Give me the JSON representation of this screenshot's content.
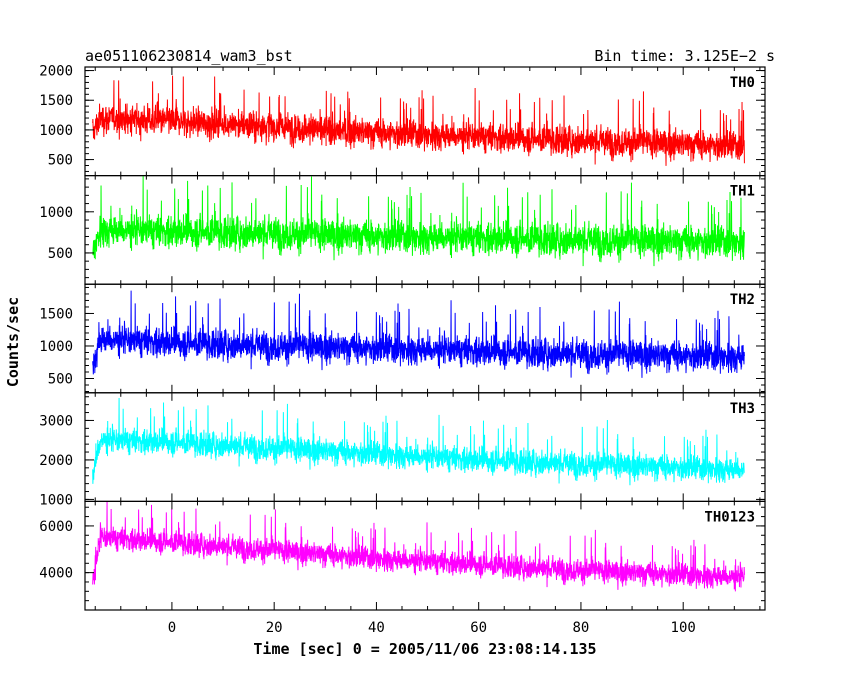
{
  "chart_data": {
    "type": "line",
    "title_left": "ae051106230814_wam3_bst",
    "title_right": "Bin time: 3.125E−2 s",
    "xlabel": "Time [sec] 0 = 2005/11/06 23:08:14.135",
    "ylabel": "Counts/sec",
    "xlim": [
      -17,
      116
    ],
    "x_ticks": [
      0,
      20,
      40,
      60,
      80,
      100
    ],
    "data_range": [
      -15.5,
      112
    ],
    "grid": false,
    "panels": [
      {
        "name": "TH0",
        "color": "#ff0000",
        "ylim": [
          230,
          2060
        ],
        "y_ticks": [
          500,
          1000,
          1500,
          2000
        ],
        "trend_x": [
          -15.5,
          -14,
          0,
          20,
          40,
          60,
          80,
          100,
          112
        ],
        "trend_y": [
          950,
          1200,
          1150,
          1050,
          950,
          880,
          820,
          760,
          720
        ],
        "noise": 320,
        "min_clip": 250
      },
      {
        "name": "TH1",
        "color": "#00ff00",
        "ylim": [
          120,
          1440
        ],
        "y_ticks": [
          500,
          1000
        ],
        "trend_x": [
          -15.5,
          -14,
          0,
          20,
          40,
          60,
          80,
          100,
          112
        ],
        "trend_y": [
          500,
          780,
          760,
          740,
          700,
          680,
          660,
          640,
          630
        ],
        "noise": 260,
        "min_clip": 150
      },
      {
        "name": "TH2",
        "color": "#0000ff",
        "ylim": [
          280,
          1950
        ],
        "y_ticks": [
          500,
          1000,
          1500
        ],
        "trend_x": [
          -15.5,
          -14,
          0,
          20,
          40,
          60,
          80,
          100,
          112
        ],
        "trend_y": [
          700,
          1100,
          1050,
          1000,
          960,
          920,
          880,
          850,
          830
        ],
        "noise": 300,
        "min_clip": 300
      },
      {
        "name": "TH3",
        "color": "#00ffff",
        "ylim": [
          950,
          3700
        ],
        "y_ticks": [
          1000,
          2000,
          3000
        ],
        "trend_x": [
          -15.5,
          -14,
          0,
          20,
          40,
          60,
          80,
          100,
          112
        ],
        "trend_y": [
          1600,
          2500,
          2450,
          2300,
          2150,
          2000,
          1900,
          1800,
          1750
        ],
        "noise": 420,
        "min_clip": 1000
      },
      {
        "name": "TH0123",
        "color": "#ff00ff",
        "ylim": [
          2400,
          7050
        ],
        "y_ticks": [
          4000,
          6000
        ],
        "trend_x": [
          -15.5,
          -14,
          0,
          20,
          40,
          60,
          80,
          100,
          112
        ],
        "trend_y": [
          3600,
          5500,
          5300,
          4950,
          4600,
          4350,
          4100,
          3900,
          3800
        ],
        "noise": 650,
        "min_clip": 2450
      }
    ]
  }
}
